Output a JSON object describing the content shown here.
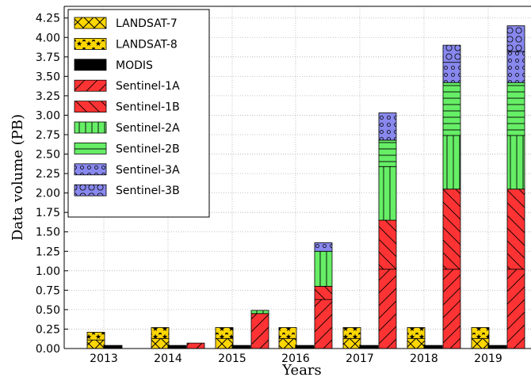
{
  "chart_data": {
    "type": "bar",
    "xlabel": "Years",
    "ylabel": "Data volume (PB)",
    "ylim": [
      0,
      4.4
    ],
    "y_ticks": [
      "0.00",
      "0.25",
      "0.50",
      "0.75",
      "1.00",
      "1.25",
      "1.50",
      "1.75",
      "2.00",
      "2.25",
      "2.50",
      "2.75",
      "3.00",
      "3.25",
      "3.50",
      "3.75",
      "4.00",
      "4.25"
    ],
    "categories": [
      "2013",
      "2014",
      "2015",
      "2016",
      "2017",
      "2018",
      "2019"
    ],
    "grid": true,
    "legend_position": "top-left",
    "left_stack": {
      "series": [
        {
          "name": "LANDSAT-7",
          "color": "#ffd700",
          "pattern": "cross",
          "values": [
            0.11,
            0.13,
            0.13,
            0.13,
            0.13,
            0.13,
            0.13
          ]
        },
        {
          "name": "LANDSAT-8",
          "color": "#ffd700",
          "pattern": "stars",
          "values": [
            0.1,
            0.14,
            0.14,
            0.14,
            0.14,
            0.14,
            0.14
          ]
        }
      ]
    },
    "middle_stack": {
      "series": [
        {
          "name": "MODIS",
          "color": "#000000",
          "pattern": "solid",
          "values": [
            0.04,
            0.04,
            0.04,
            0.04,
            0.04,
            0.04,
            0.04
          ]
        }
      ]
    },
    "right_stack": {
      "series": [
        {
          "name": "Sentinel-1A",
          "color": "#ff3333",
          "pattern": "diag-right",
          "values": [
            0,
            0.07,
            0.45,
            0.63,
            1.02,
            1.02,
            1.02
          ]
        },
        {
          "name": "Sentinel-1B",
          "color": "#ff3333",
          "pattern": "diag-left",
          "values": [
            0,
            0,
            0,
            0.17,
            0.63,
            1.03,
            1.03
          ]
        },
        {
          "name": "Sentinel-2A",
          "color": "#66ee66",
          "pattern": "vertical",
          "values": [
            0,
            0,
            0.04,
            0.45,
            0.69,
            0.69,
            0.69
          ]
        },
        {
          "name": "Sentinel-2B",
          "color": "#66ee66",
          "pattern": "horizontal",
          "values": [
            0,
            0,
            0,
            0,
            0.34,
            0.68,
            0.68
          ]
        },
        {
          "name": "Sentinel-3A",
          "color": "#8888ee",
          "pattern": "small-circles",
          "values": [
            0,
            0,
            0,
            0.11,
            0.35,
            0.26,
            0.4
          ]
        },
        {
          "name": "Sentinel-3B",
          "color": "#8888ee",
          "pattern": "big-circles",
          "values": [
            0,
            0,
            0,
            0,
            0,
            0.22,
            0.33
          ]
        }
      ]
    }
  }
}
